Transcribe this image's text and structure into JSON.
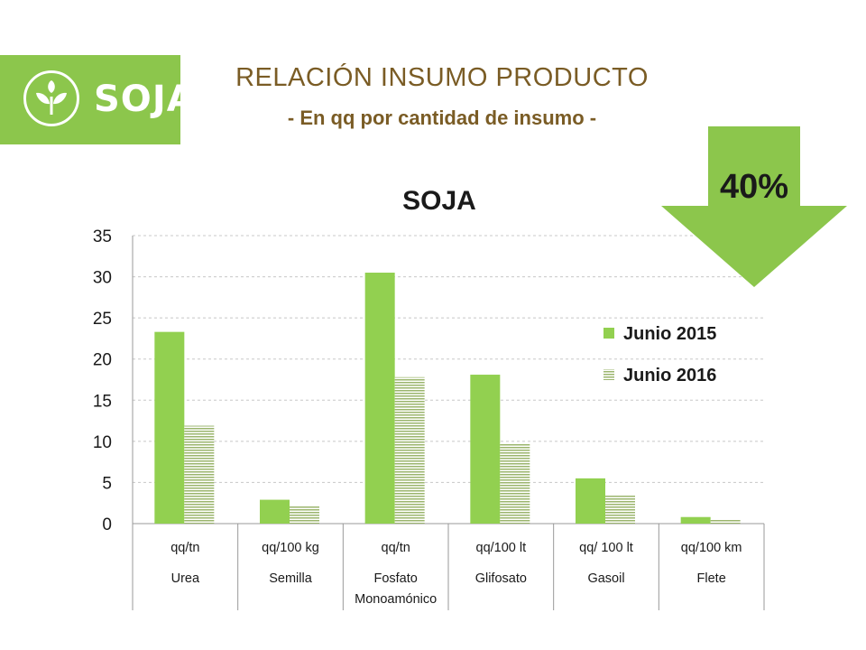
{
  "logo": {
    "text": "SOJA"
  },
  "header": {
    "title": "RELACIÓN INSUMO PRODUCTO",
    "subtitle": "- En qq por cantidad de insumo -"
  },
  "callout": {
    "value": "40%",
    "direction": "down"
  },
  "colors": {
    "brand_green": "#8cc64c",
    "series1": "#92d050",
    "series2_stripe": "#9bb56d",
    "title_brown": "#7a5c25"
  },
  "chart_data": {
    "type": "bar",
    "title": "SOJA",
    "xlabel": "",
    "ylabel": "",
    "ylim": [
      0,
      35
    ],
    "yticks": [
      0,
      5,
      10,
      15,
      20,
      25,
      30,
      35
    ],
    "grid": true,
    "legend_position": "right",
    "categories": [
      {
        "unit": "qq/tn",
        "name": "Urea"
      },
      {
        "unit": "qq/100 kg",
        "name": "Semilla"
      },
      {
        "unit": "qq/tn",
        "name": "Fosfato Monoamónico"
      },
      {
        "unit": "qq/100 lt",
        "name": "Glifosato"
      },
      {
        "unit": "qq/ 100 lt",
        "name": "Gasoil"
      },
      {
        "unit": "qq/100 km",
        "name": "Flete"
      }
    ],
    "series": [
      {
        "name": "Junio 2015",
        "values": [
          23.3,
          2.9,
          30.5,
          18.1,
          5.5,
          0.8
        ]
      },
      {
        "name": "Junio 2016",
        "values": [
          11.9,
          2.1,
          17.8,
          9.8,
          3.4,
          0.5
        ]
      }
    ]
  }
}
